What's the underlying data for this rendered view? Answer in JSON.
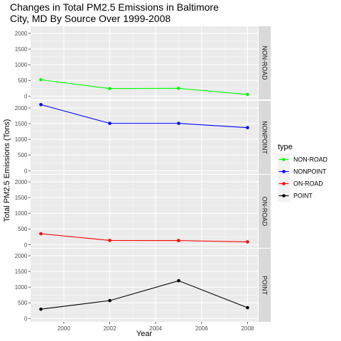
{
  "chart_data": {
    "type": "line",
    "title_lines": [
      "Changes in Total PM2.5 Emissions in Baltimore",
      "City, MD By Source Over 1999-2008"
    ],
    "xlabel": "Year",
    "ylabel": "Total PM2.5 Emissions (Tons)",
    "x": [
      1999,
      2002,
      2005,
      2008
    ],
    "x_ticks": [
      2000,
      2002,
      2004,
      2006,
      2008
    ],
    "xlim": [
      1998.55,
      2008.45
    ],
    "y_ticks": [
      0,
      500,
      1000,
      1500,
      2000
    ],
    "ylim": [
      -106,
      2226
    ],
    "facet_layout": "vertical, one panel per series, strip label on right",
    "grid": true,
    "legend": {
      "title": "type",
      "placement": "right"
    },
    "series": [
      {
        "name": "NON-ROAD",
        "color": "#00ff00",
        "values": [
          522,
          240,
          248,
          55
        ]
      },
      {
        "name": "NONPOINT",
        "color": "#0000ff",
        "values": [
          2107,
          1510,
          1510,
          1373
        ]
      },
      {
        "name": "ON-ROAD",
        "color": "#ff0000",
        "values": [
          347,
          134,
          130,
          88
        ]
      },
      {
        "name": "POINT",
        "color": "#000000",
        "values": [
          297,
          570,
          1203,
          345
        ]
      }
    ]
  }
}
